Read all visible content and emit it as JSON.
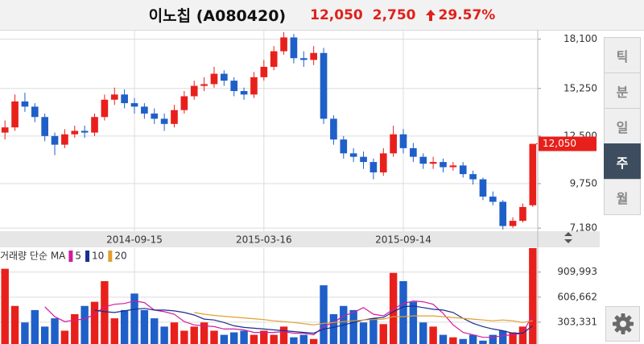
{
  "header": {
    "name": "이노칩 (A080420)",
    "price": "12,050",
    "change": "2,750",
    "change_rate": "29.57%"
  },
  "period_tabs": [
    "틱",
    "분",
    "일",
    "주",
    "월"
  ],
  "selected_tab": "주",
  "chart_data": [
    {
      "type": "candlestick",
      "categories": [
        null,
        null,
        null,
        null,
        null,
        null,
        null,
        null,
        null,
        null,
        null,
        null,
        null,
        "2014-09-15",
        null,
        null,
        null,
        null,
        null,
        null,
        null,
        null,
        null,
        null,
        null,
        null,
        "2015-03-16",
        null,
        null,
        null,
        null,
        null,
        null,
        null,
        null,
        null,
        null,
        null,
        null,
        null,
        "2015-09-14",
        null,
        null,
        null,
        null,
        null,
        null,
        null,
        null,
        null,
        null,
        null,
        null,
        null
      ],
      "open": [
        12700,
        13000,
        14500,
        14200,
        13600,
        12500,
        12000,
        12600,
        12800,
        12700,
        13600,
        14600,
        14900,
        14400,
        14200,
        13800,
        13500,
        13200,
        14000,
        14800,
        15400,
        15500,
        16100,
        15700,
        15100,
        14900,
        15900,
        16500,
        17400,
        18200,
        17000,
        16900,
        17300,
        13500,
        12300,
        11500,
        11300,
        11000,
        10400,
        11500,
        12600,
        11800,
        11300,
        10900,
        11000,
        10700,
        10800,
        10300,
        10000,
        9000,
        8700,
        7300,
        7600,
        8500
      ],
      "high": [
        13400,
        14900,
        15000,
        14400,
        13800,
        12700,
        12900,
        13100,
        13100,
        13800,
        14900,
        15300,
        15200,
        14700,
        14400,
        14100,
        13800,
        14300,
        15100,
        15700,
        15900,
        16500,
        16300,
        15900,
        15300,
        16200,
        16900,
        17700,
        18500,
        18400,
        17400,
        17700,
        17600,
        13700,
        12500,
        11800,
        11600,
        11200,
        11800,
        13100,
        12900,
        12100,
        11500,
        11300,
        11200,
        11000,
        11000,
        10500,
        10100,
        9300,
        8800,
        7800,
        8600,
        12050
      ],
      "low": [
        12300,
        12800,
        13900,
        13300,
        12200,
        11400,
        11800,
        12400,
        12400,
        12500,
        13400,
        14300,
        14100,
        13800,
        13500,
        13200,
        12800,
        13000,
        13800,
        14600,
        15100,
        15300,
        15400,
        14800,
        14600,
        14700,
        15700,
        16300,
        17200,
        16700,
        16500,
        16600,
        13200,
        12000,
        11200,
        11000,
        10600,
        10000,
        10200,
        11300,
        11500,
        11000,
        10600,
        10600,
        10400,
        10500,
        10100,
        9700,
        8800,
        8500,
        7100,
        7200,
        7500,
        8400
      ],
      "close": [
        13000,
        14500,
        14200,
        13600,
        12500,
        12000,
        12600,
        12800,
        12700,
        13600,
        14600,
        14900,
        14400,
        14200,
        13800,
        13500,
        13200,
        14000,
        14800,
        15400,
        15500,
        16100,
        15700,
        15100,
        14900,
        15900,
        16500,
        17400,
        18200,
        17000,
        16900,
        17300,
        13500,
        12300,
        11500,
        11300,
        11000,
        10400,
        11500,
        12600,
        11800,
        11300,
        10900,
        11000,
        10700,
        10800,
        10300,
        10000,
        9000,
        8700,
        7300,
        7600,
        8400,
        12050
      ],
      "up_color": "#e8201c",
      "down_color": "#1f5fc8",
      "ylim": [
        7000,
        18500
      ],
      "yticks": [
        {
          "value": 18100,
          "label": "18,100"
        },
        {
          "value": 15250,
          "label": "15,250"
        },
        {
          "value": 12500,
          "label": "12,500"
        },
        {
          "value": 9750,
          "label": "9,750"
        },
        {
          "value": 7180,
          "label": "7,180"
        }
      ],
      "grid": true
    },
    {
      "type": "bar",
      "title": "거래량 단순 MA",
      "values": [
        950000,
        500000,
        300000,
        450000,
        250000,
        350000,
        200000,
        400000,
        500000,
        550000,
        800000,
        350000,
        450000,
        650000,
        450000,
        350000,
        250000,
        300000,
        200000,
        250000,
        300000,
        200000,
        150000,
        180000,
        200000,
        150000,
        200000,
        150000,
        250000,
        120000,
        150000,
        100000,
        750000,
        400000,
        500000,
        450000,
        300000,
        350000,
        280000,
        900000,
        800000,
        550000,
        300000,
        250000,
        150000,
        120000,
        100000,
        150000,
        80000,
        150000,
        200000,
        180000,
        250000,
        1200000
      ],
      "series": [
        {
          "name": "5",
          "color": "#d01ca0",
          "values": [
            null,
            null,
            null,
            null,
            490000,
            370000,
            310000,
            330000,
            340000,
            400000,
            490000,
            520000,
            530000,
            560000,
            540000,
            450000,
            430000,
            400000,
            310000,
            270000,
            260000,
            250000,
            220000,
            220000,
            210000,
            180000,
            180000,
            180000,
            190000,
            170000,
            170000,
            150000,
            250000,
            300000,
            380000,
            420000,
            480000,
            400000,
            380000,
            460000,
            530000,
            560000,
            550000,
            520000,
            410000,
            270000,
            180000,
            150000,
            120000,
            120000,
            140000,
            150000,
            170000,
            400000
          ]
        },
        {
          "name": "10",
          "color": "#1c2c90",
          "values": [
            null,
            null,
            null,
            null,
            null,
            null,
            null,
            null,
            null,
            450000,
            430000,
            420000,
            440000,
            460000,
            470000,
            450000,
            450000,
            440000,
            420000,
            390000,
            340000,
            330000,
            300000,
            260000,
            240000,
            230000,
            220000,
            210000,
            200000,
            190000,
            180000,
            170000,
            220000,
            240000,
            270000,
            300000,
            330000,
            350000,
            360000,
            430000,
            490000,
            500000,
            480000,
            460000,
            450000,
            420000,
            350000,
            290000,
            250000,
            220000,
            200000,
            170000,
            170000,
            260000
          ]
        },
        {
          "name": "20",
          "color": "#e0a030",
          "values": [
            null,
            null,
            null,
            null,
            null,
            null,
            null,
            null,
            null,
            null,
            null,
            null,
            null,
            null,
            null,
            null,
            null,
            null,
            null,
            420000,
            400000,
            385000,
            375000,
            365000,
            355000,
            345000,
            335000,
            320000,
            310000,
            300000,
            285000,
            270000,
            290000,
            300000,
            310000,
            320000,
            330000,
            335000,
            340000,
            370000,
            370000,
            380000,
            380000,
            380000,
            370000,
            360000,
            350000,
            340000,
            330000,
            320000,
            330000,
            320000,
            300000,
            320000
          ]
        }
      ],
      "ylim": [
        0,
        1200000
      ],
      "yticks": [
        {
          "value": 909993,
          "label": "909,993"
        },
        {
          "value": 606662,
          "label": "606,662"
        },
        {
          "value": 303331,
          "label": "303,331"
        }
      ],
      "grid": true
    }
  ]
}
